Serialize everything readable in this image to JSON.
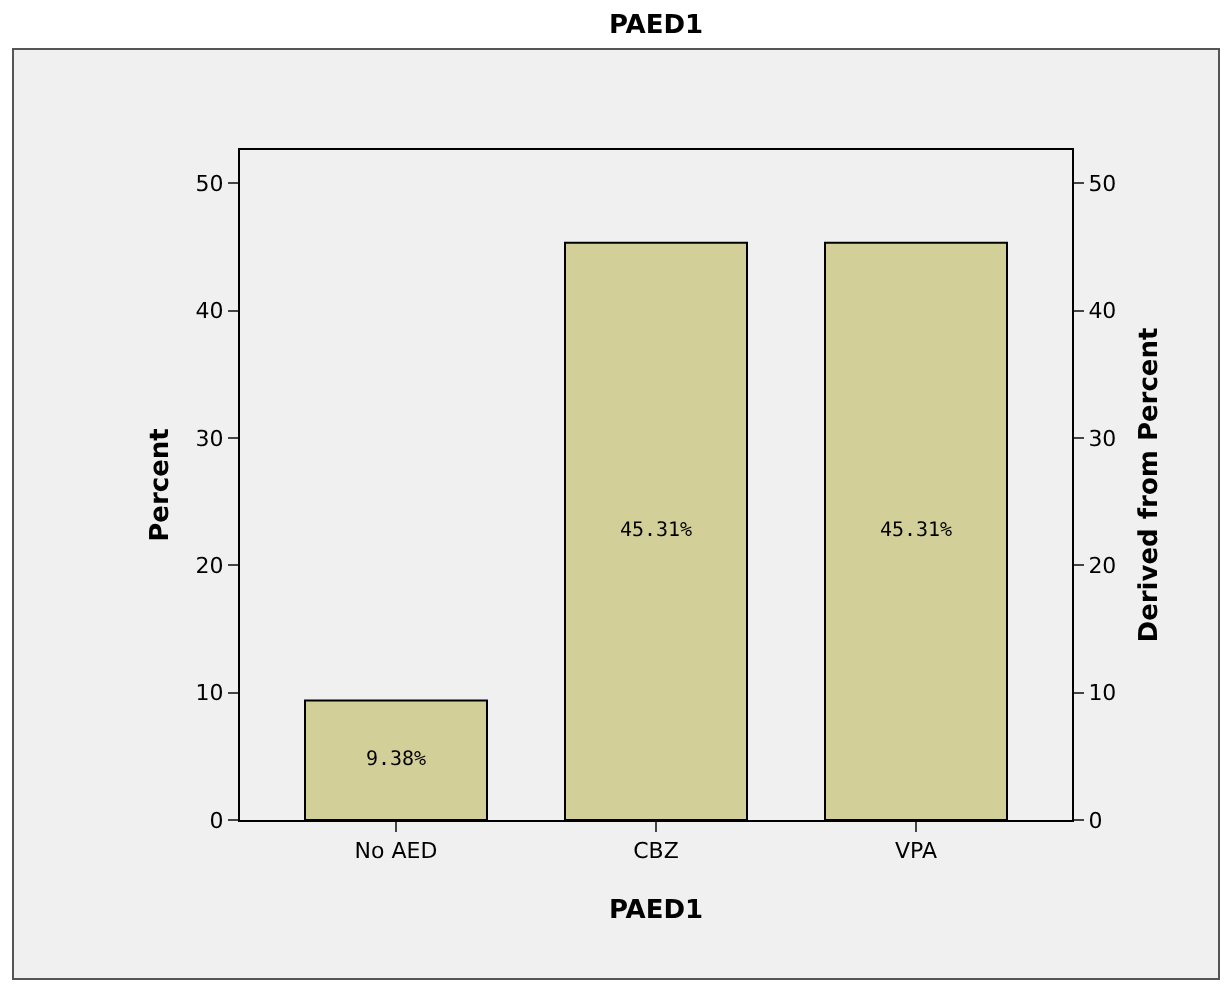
{
  "chart_data": {
    "type": "bar",
    "title": "PAED1",
    "xlabel": "PAED1",
    "ylabel": "Percent",
    "y2label": "Derived from Percent",
    "categories": [
      "No AED",
      "CBZ",
      "VPA"
    ],
    "values": [
      9.38,
      45.31,
      45.31
    ],
    "value_labels": [
      "9.38%",
      "45.31%",
      "45.31%"
    ],
    "color": "#d3cf98",
    "ylim": [
      0,
      52.6
    ],
    "yticks": [
      0,
      10,
      20,
      30,
      40,
      50
    ],
    "y2lim": [
      0,
      52.6
    ],
    "y2ticks": [
      0,
      10,
      20,
      30,
      40,
      50
    ]
  }
}
